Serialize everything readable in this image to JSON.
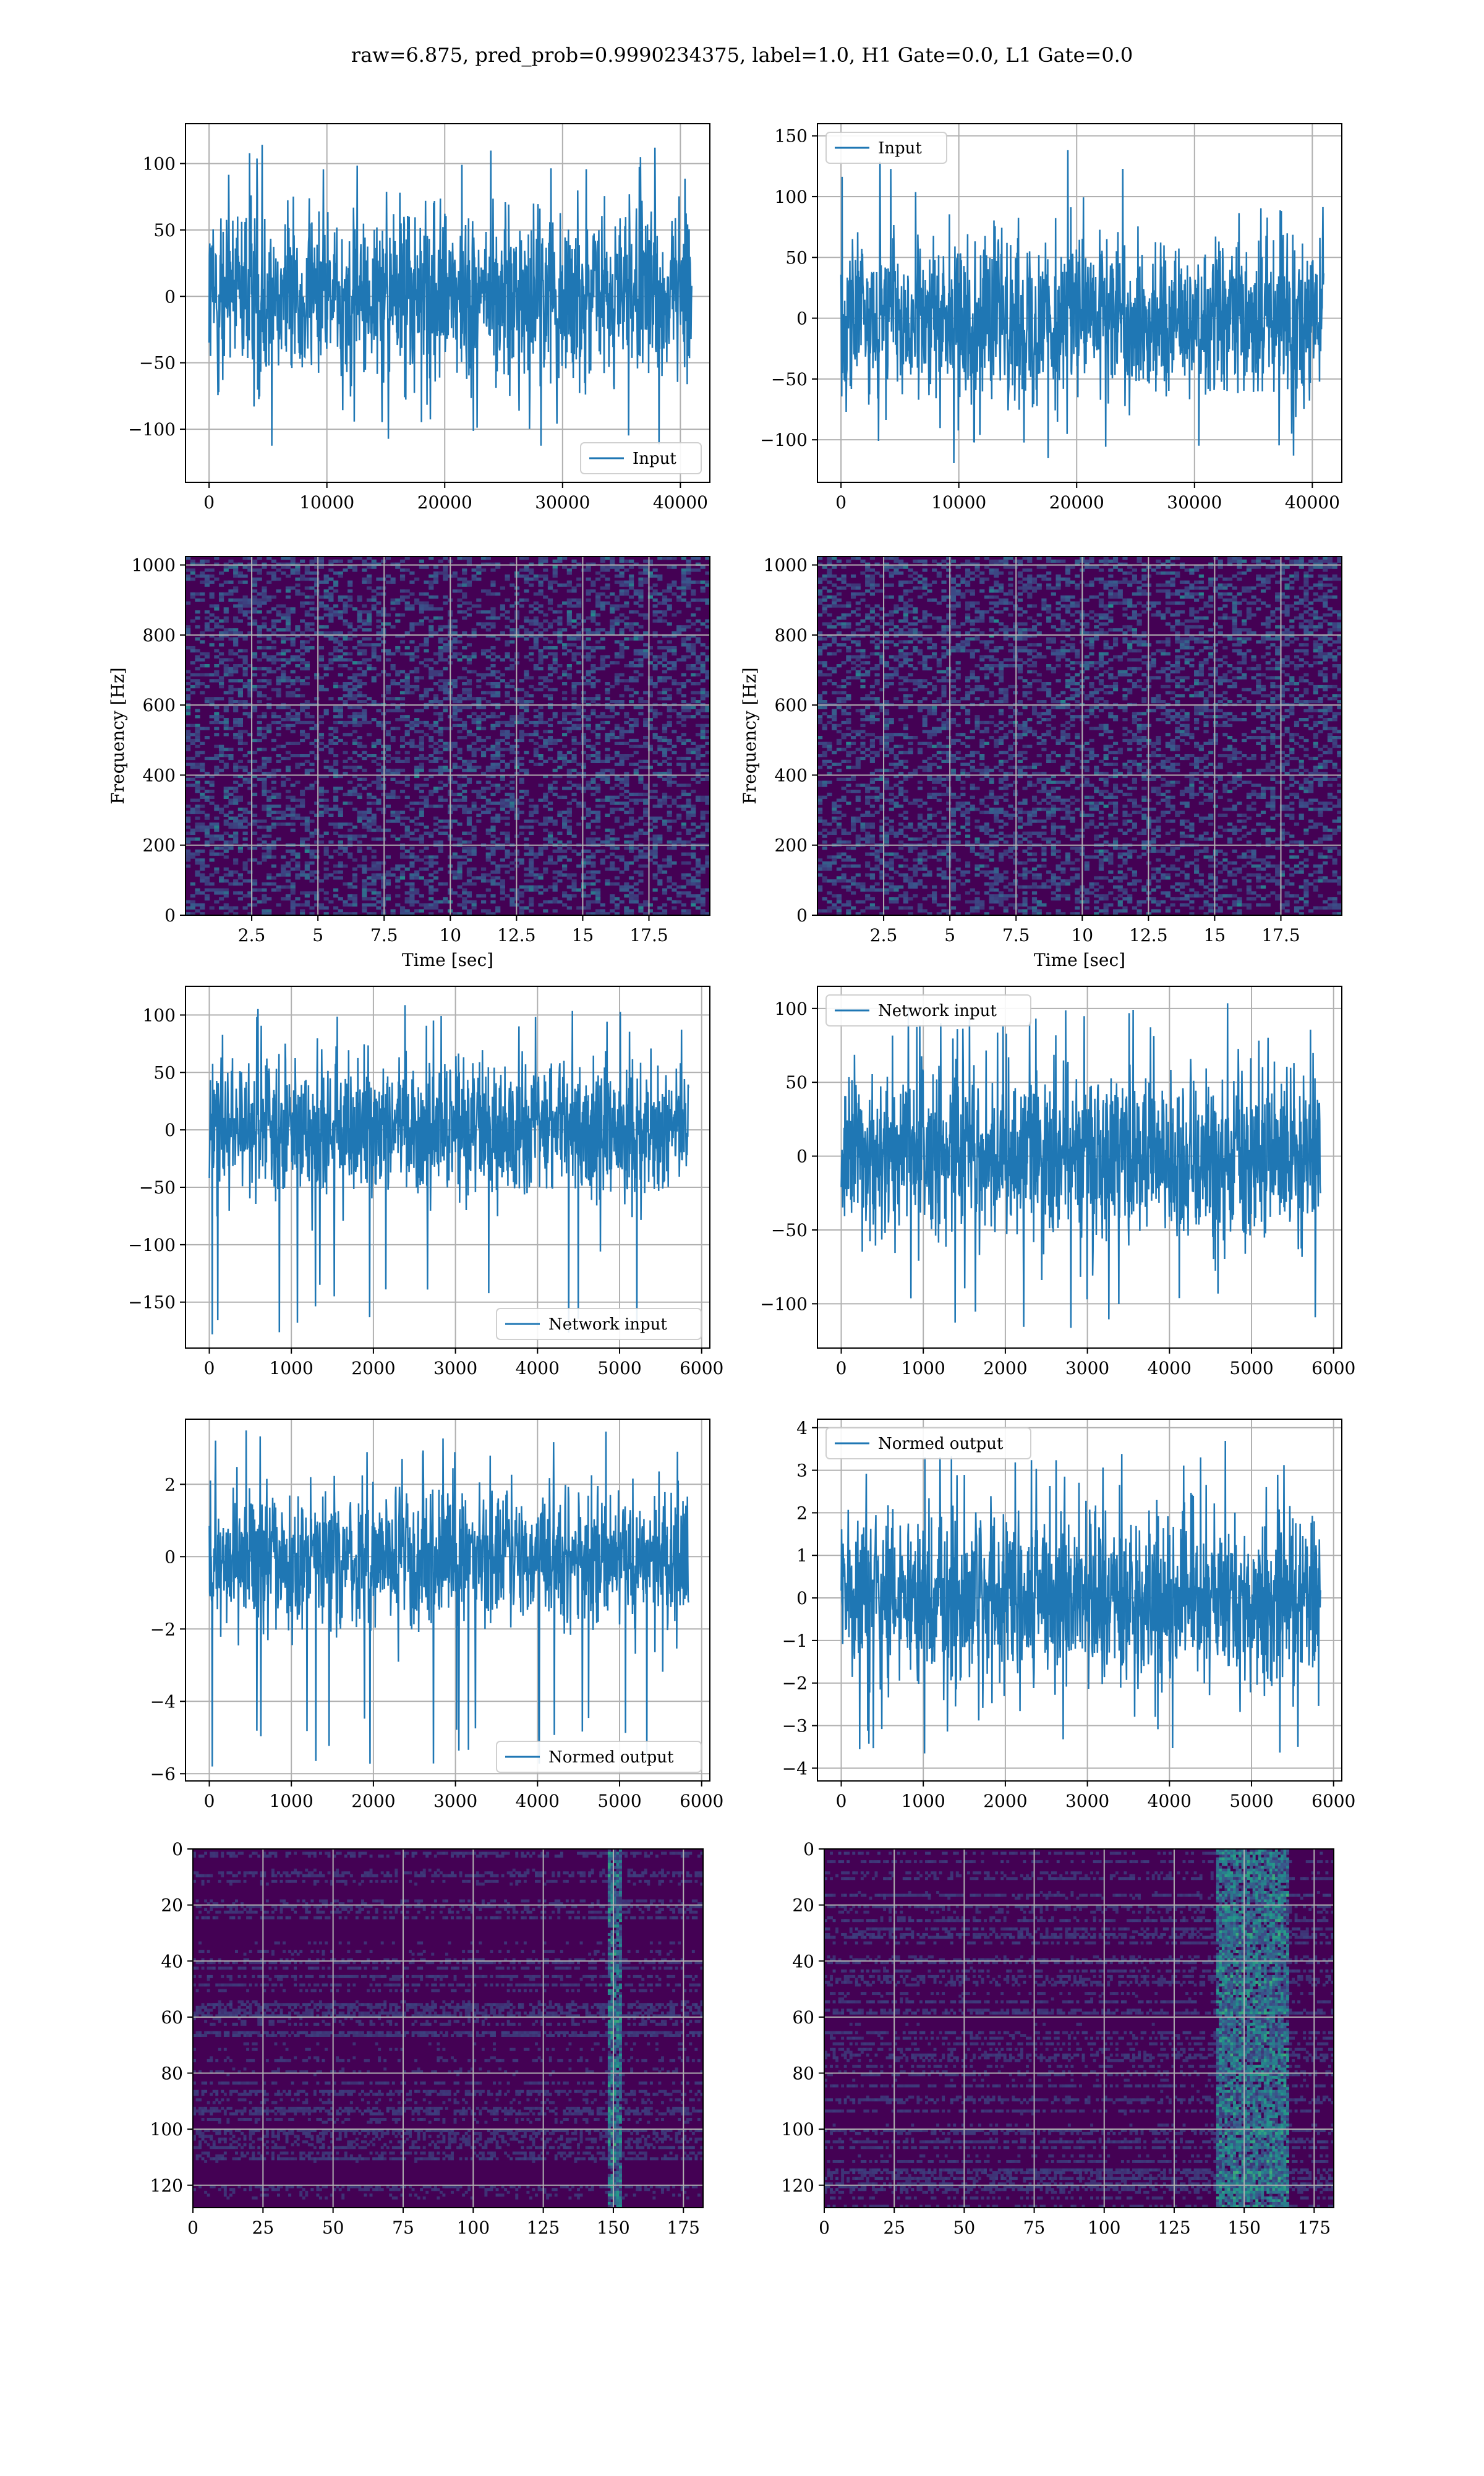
{
  "figure": {
    "suptitle": "raw=6.875, pred_prob=0.9990234375, label=1.0, H1 Gate=0.0, L1 Gate=0.0",
    "colors": {
      "line": "#1f77b4",
      "grid": "#b0b0b0",
      "heat_low": "#440154",
      "heat_mid": "#21918c",
      "heat_high": "#fde725"
    }
  },
  "chart_data": [
    {
      "id": "h1-input",
      "type": "line",
      "xlim": [
        -2000,
        42500
      ],
      "ylim": [
        -140,
        130
      ],
      "xticks": [
        0,
        10000,
        20000,
        30000,
        40000
      ],
      "yticks": [
        -100,
        -50,
        0,
        50,
        100
      ],
      "series": [
        {
          "name": "Input",
          "x_range": [
            0,
            40960
          ],
          "amplitude_envelope": [
            -120,
            120
          ]
        }
      ],
      "legend": "lower-right",
      "grid": true
    },
    {
      "id": "l1-input",
      "type": "line",
      "xlim": [
        -2000,
        42500
      ],
      "ylim": [
        -135,
        160
      ],
      "xticks": [
        0,
        10000,
        20000,
        30000,
        40000
      ],
      "yticks": [
        -100,
        -50,
        0,
        50,
        100,
        150
      ],
      "series": [
        {
          "name": "Input",
          "x_range": [
            0,
            40960
          ],
          "amplitude_envelope": [
            -125,
            148
          ]
        }
      ],
      "legend": "upper-left",
      "grid": true
    },
    {
      "id": "h1-spectrogram",
      "type": "heatmap",
      "xlim": [
        0,
        19.8
      ],
      "ylim": [
        0,
        1024
      ],
      "xticks": [
        2.5,
        5.0,
        7.5,
        10.0,
        12.5,
        15.0,
        17.5
      ],
      "yticks": [
        0,
        200,
        400,
        600,
        800,
        1000
      ],
      "xlabel": "Time [sec]",
      "ylabel": "Frequency [Hz]",
      "grid": true,
      "colormap": "viridis"
    },
    {
      "id": "l1-spectrogram",
      "type": "heatmap",
      "xlim": [
        0,
        19.8
      ],
      "ylim": [
        0,
        1024
      ],
      "xticks": [
        2.5,
        5.0,
        7.5,
        10.0,
        12.5,
        15.0,
        17.5
      ],
      "yticks": [
        0,
        200,
        400,
        600,
        800,
        1000
      ],
      "xlabel": "Time [sec]",
      "ylabel": "Frequency [Hz]",
      "grid": true,
      "colormap": "viridis"
    },
    {
      "id": "h1-network-input",
      "type": "line",
      "xlim": [
        -290,
        6100
      ],
      "ylim": [
        -190,
        125
      ],
      "xticks": [
        0,
        1000,
        2000,
        3000,
        4000,
        5000,
        6000
      ],
      "yticks": [
        -150,
        -100,
        -50,
        0,
        50,
        100
      ],
      "series": [
        {
          "name": "Network input",
          "x_range": [
            0,
            5840
          ],
          "amplitude_envelope": [
            -178,
            110
          ]
        }
      ],
      "legend": "lower-right",
      "grid": true
    },
    {
      "id": "l1-network-input",
      "type": "line",
      "xlim": [
        -290,
        6100
      ],
      "ylim": [
        -130,
        115
      ],
      "xticks": [
        0,
        1000,
        2000,
        3000,
        4000,
        5000,
        6000
      ],
      "yticks": [
        -100,
        -50,
        0,
        50,
        100
      ],
      "series": [
        {
          "name": "Network input",
          "x_range": [
            0,
            5840
          ],
          "amplitude_envelope": [
            -118,
            105
          ]
        }
      ],
      "legend": "upper-left",
      "grid": true
    },
    {
      "id": "h1-normed-output",
      "type": "line",
      "xlim": [
        -290,
        6100
      ],
      "ylim": [
        -6.2,
        3.8
      ],
      "xticks": [
        0,
        1000,
        2000,
        3000,
        4000,
        5000,
        6000
      ],
      "yticks": [
        -6,
        -4,
        -2,
        0,
        2
      ],
      "series": [
        {
          "name": "Normed output",
          "x_range": [
            0,
            5840
          ],
          "amplitude_envelope": [
            -5.8,
            3.5
          ]
        }
      ],
      "legend": "lower-right",
      "grid": true
    },
    {
      "id": "l1-normed-output",
      "type": "line",
      "xlim": [
        -290,
        6100
      ],
      "ylim": [
        -4.3,
        4.2
      ],
      "xticks": [
        0,
        1000,
        2000,
        3000,
        4000,
        5000,
        6000
      ],
      "yticks": [
        -4,
        -3,
        -2,
        -1,
        0,
        1,
        2,
        3,
        4
      ],
      "series": [
        {
          "name": "Normed output",
          "x_range": [
            0,
            5840
          ],
          "amplitude_envelope": [
            -3.7,
            3.7
          ]
        }
      ],
      "legend": "upper-left",
      "grid": true
    },
    {
      "id": "h1-feature-map",
      "type": "heatmap",
      "xlim": [
        0,
        182
      ],
      "ylim": [
        128,
        0
      ],
      "xticks": [
        0,
        25,
        50,
        75,
        100,
        125,
        150,
        175
      ],
      "yticks": [
        0,
        20,
        40,
        60,
        80,
        100,
        120
      ],
      "grid": true,
      "colormap": "viridis",
      "bright_columns": [
        148,
        152
      ]
    },
    {
      "id": "l1-feature-map",
      "type": "heatmap",
      "xlim": [
        0,
        182
      ],
      "ylim": [
        128,
        0
      ],
      "xticks": [
        0,
        25,
        50,
        75,
        100,
        125,
        150,
        175
      ],
      "yticks": [
        0,
        20,
        40,
        60,
        80,
        100,
        120
      ],
      "grid": true,
      "colormap": "viridis",
      "bright_columns": [
        140,
        165
      ]
    }
  ]
}
